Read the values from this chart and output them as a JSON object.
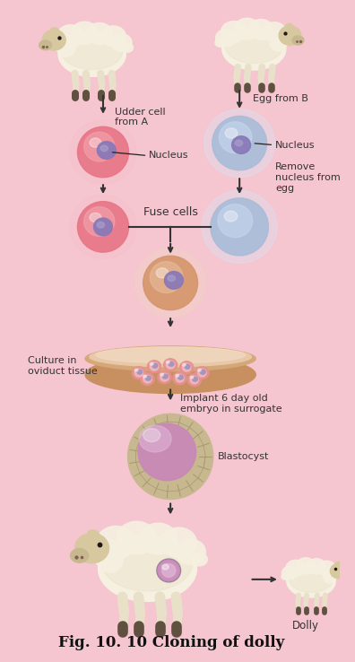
{
  "background_color": "#f5c5d0",
  "title": "Fig. 10. 10 Cloning of dolly",
  "title_fontsize": 12,
  "labels": {
    "udder_cell": "Udder cell\nfrom A",
    "egg_from_b": "Egg from B",
    "nucleus_left": "Nucleus",
    "nucleus_right": "Nucleus",
    "remove_nucleus": "Remove\nnucleus from\negg",
    "fuse_cells": "Fuse cells",
    "culture": "Culture in\noviduct tissue",
    "implant": "Implant 6 day old\nembryo in surrogate",
    "blastocyst": "Blastocyst",
    "dolly": "Dolly"
  },
  "colors": {
    "pink_cell_outer": "#e87585",
    "pink_cell_inner": "#f2a8b2",
    "pink_cell_glow": "#f5c0c8",
    "blue_cell_outer": "#a8bcd8",
    "blue_cell_inner": "#c8d8f0",
    "blue_cell_glow": "#d8e5f5",
    "nucleus_purple": "#8878b8",
    "nucleus_light": "#b0a8d0",
    "fused_outer": "#d4956a",
    "fused_inner": "#e8c0a0",
    "fused_glow": "#f0d8c0",
    "petri_rim": "#c89060",
    "petri_wall": "#d4a878",
    "petri_floor": "#e8c8a8",
    "petri_content": "#f0d8c0",
    "petri_cell_pink": "#e89090",
    "petri_cell_purple": "#a090c0",
    "blast_ring": "#c8b890",
    "blast_cell": "#d8caa8",
    "blast_inner": "#c888b8",
    "blast_glow": "#e0b8d8",
    "sheep_body": "#e8e0c8",
    "sheep_wool": "#f5f0e0",
    "sheep_face": "#d8c8a0",
    "sheep_leg": "#c0b090",
    "sheep_hoof": "#605040",
    "arrow_color": "#333333",
    "text_color": "#333333",
    "line_color": "#222222"
  }
}
